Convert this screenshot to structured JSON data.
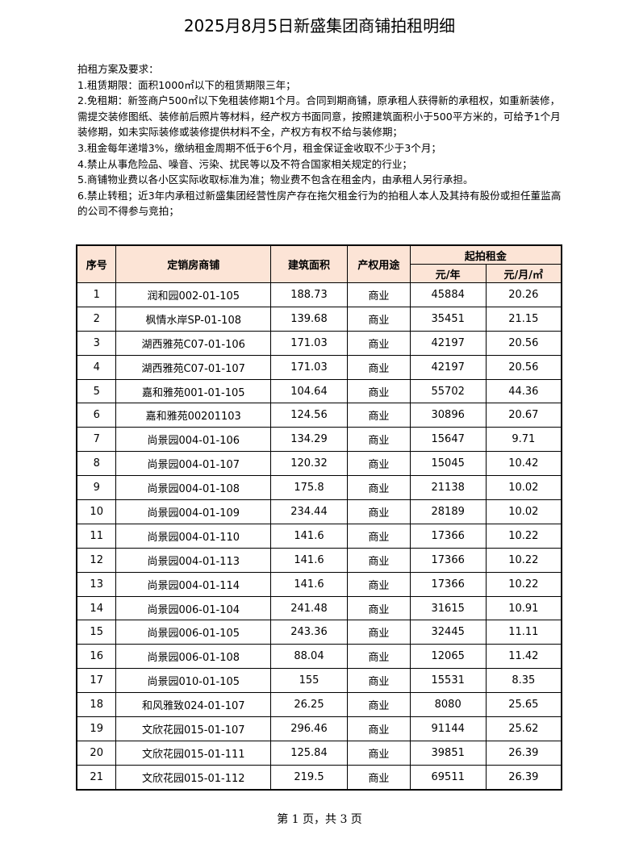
{
  "title": "2025月8月5日新盛集团商铺拍租明细",
  "requirements": {
    "heading": "拍租方案及要求：",
    "items": [
      "1.租赁期限：面积1000㎡以下的租赁期限三年；",
      "2.免租期：新签商户500㎡以下免租装修期1个月。合同到期商铺，原承租人获得新的承租权，如重新装修，需提交装修图纸、装修前后照片等材料，经产权方书面同意，按照建筑面积小于500平方米的，可给予1个月装修期，如未实际装修或装修提供材料不全，产权方有权不给与装修期；",
      "3.租金每年递增3%，缴纳租金周期不低于6个月，租金保证金收取不少于3个月；",
      "4.禁止从事危险品、噪音、污染、扰民等以及不符合国家相关规定的行业；",
      "5.商铺物业费以各小区实际收取标准为准；物业费不包含在租金内，由承租人另行承担。",
      "6.禁止转租；近3年内承租过新盛集团经营性房产存在拖欠租金行为的拍租人本人及其持有股份或担任董监高的公司不得参与竞拍；"
    ]
  },
  "table": {
    "headers": {
      "no": "序号",
      "shop": "定销房商铺",
      "area": "建筑面积",
      "usage": "产权用途",
      "rent": "起拍租金",
      "per_year": "元/年",
      "per_month_sqm": "元/月/㎡"
    },
    "header_bg": "#fce4d6",
    "rows": [
      [
        "1",
        "润和园002-01-105",
        "188.73",
        "商业",
        "45884",
        "20.26"
      ],
      [
        "2",
        "枫情水岸SP-01-108",
        "139.68",
        "商业",
        "35451",
        "21.15"
      ],
      [
        "3",
        "湖西雅苑C07-01-106",
        "171.03",
        "商业",
        "42197",
        "20.56"
      ],
      [
        "4",
        "湖西雅苑C07-01-107",
        "171.03",
        "商业",
        "42197",
        "20.56"
      ],
      [
        "5",
        "嘉和雅苑001-01-105",
        "104.64",
        "商业",
        "55702",
        "44.36"
      ],
      [
        "6",
        "嘉和雅苑00201103",
        "124.56",
        "商业",
        "30896",
        "20.67"
      ],
      [
        "7",
        "尚景园004-01-106",
        "134.29",
        "商业",
        "15647",
        "9.71"
      ],
      [
        "8",
        "尚景园004-01-107",
        "120.32",
        "商业",
        "15045",
        "10.42"
      ],
      [
        "9",
        "尚景园004-01-108",
        "175.8",
        "商业",
        "21138",
        "10.02"
      ],
      [
        "10",
        "尚景园004-01-109",
        "234.44",
        "商业",
        "28189",
        "10.02"
      ],
      [
        "11",
        "尚景园004-01-110",
        "141.6",
        "商业",
        "17366",
        "10.22"
      ],
      [
        "12",
        "尚景园004-01-113",
        "141.6",
        "商业",
        "17366",
        "10.22"
      ],
      [
        "13",
        "尚景园004-01-114",
        "141.6",
        "商业",
        "17366",
        "10.22"
      ],
      [
        "14",
        "尚景园006-01-104",
        "241.48",
        "商业",
        "31615",
        "10.91"
      ],
      [
        "15",
        "尚景园006-01-105",
        "243.36",
        "商业",
        "32445",
        "11.11"
      ],
      [
        "16",
        "尚景园006-01-108",
        "88.04",
        "商业",
        "12065",
        "11.42"
      ],
      [
        "17",
        "尚景园010-01-105",
        "155",
        "商业",
        "15531",
        "8.35"
      ],
      [
        "18",
        "和风雅致024-01-107",
        "26.25",
        "商业",
        "8080",
        "25.65"
      ],
      [
        "19",
        "文欣花园015-01-107",
        "296.46",
        "商业",
        "91144",
        "25.62"
      ],
      [
        "20",
        "文欣花园015-01-111",
        "125.84",
        "商业",
        "39851",
        "26.39"
      ],
      [
        "21",
        "文欣花园015-01-112",
        "219.5",
        "商业",
        "69511",
        "26.39"
      ]
    ]
  },
  "footer": "第 1 页，共 3 页"
}
